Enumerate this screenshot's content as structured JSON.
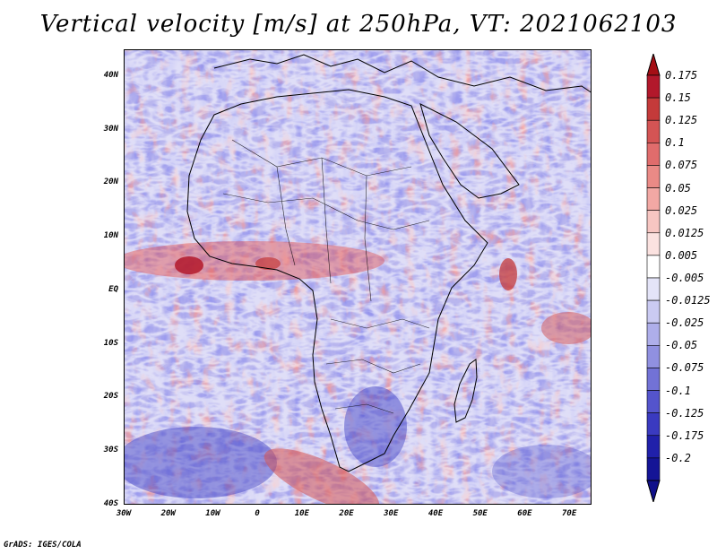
{
  "title": "Vertical velocity [m/s] at 250hPa, VT: 2021062103",
  "credit": "GrADS: IGES/COLA",
  "map": {
    "lon_range": [
      -30,
      75
    ],
    "lat_range": [
      -40,
      45
    ],
    "lat_labels": [
      {
        "lat": 40,
        "text": "40N"
      },
      {
        "lat": 30,
        "text": "30N"
      },
      {
        "lat": 20,
        "text": "20N"
      },
      {
        "lat": 10,
        "text": "10N"
      },
      {
        "lat": 0,
        "text": "EQ"
      },
      {
        "lat": -10,
        "text": "10S"
      },
      {
        "lat": -20,
        "text": "20S"
      },
      {
        "lat": -30,
        "text": "30S"
      },
      {
        "lat": -40,
        "text": "40S"
      }
    ],
    "lon_labels": [
      {
        "lon": -30,
        "text": "30W"
      },
      {
        "lon": -20,
        "text": "20W"
      },
      {
        "lon": -10,
        "text": "10W"
      },
      {
        "lon": 0,
        "text": "0"
      },
      {
        "lon": 10,
        "text": "10E"
      },
      {
        "lon": 20,
        "text": "20E"
      },
      {
        "lon": 30,
        "text": "30E"
      },
      {
        "lon": 40,
        "text": "40E"
      },
      {
        "lon": 50,
        "text": "50E"
      },
      {
        "lon": 60,
        "text": "60E"
      },
      {
        "lon": 70,
        "text": "70E"
      }
    ]
  },
  "colorbar": {
    "levels": [
      "0.175",
      "0.15",
      "0.125",
      "0.1",
      "0.075",
      "0.05",
      "0.025",
      "0.0125",
      "0.005",
      "-0.005",
      "-0.0125",
      "-0.025",
      "-0.05",
      "-0.075",
      "-0.1",
      "-0.125",
      "-0.175",
      "-0.2"
    ],
    "colors": [
      "#b2182b",
      "#c43a3a",
      "#d45454",
      "#e06c6c",
      "#ea8a86",
      "#f2a8a4",
      "#f7c6c2",
      "#fbe2e0",
      "#ffffff",
      "#e4e4f8",
      "#cacaf2",
      "#aeaeea",
      "#9090e0",
      "#7272d6",
      "#5454cc",
      "#3a3ac0",
      "#2020aa",
      "#141496"
    ],
    "top_color": "#a50f15",
    "bottom_color": "#10108a"
  }
}
